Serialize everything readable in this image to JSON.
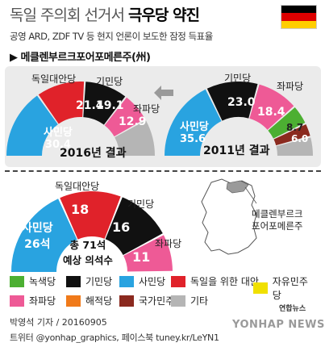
{
  "title": {
    "prefix": "독일 주의회 선거서 ",
    "highlight": "극우당 약진"
  },
  "subtitle": "공영 ARD, ZDF TV 등 현지 언론이 보도한 잠정 득표율",
  "region": "▶ 메클렌부르크포어포메른주(州)",
  "flag_colors": [
    "#000000",
    "#dd0000",
    "#ffce00"
  ],
  "colors": {
    "green": "#4caf32",
    "black": "#111111",
    "blue": "#29a3e0",
    "red": "#e0222a",
    "yellow": "#f0e000",
    "pink": "#ee5a96",
    "orange": "#f07a1a",
    "brown": "#8b2a1f",
    "gray": "#b5b5b5"
  },
  "chart_data": [
    {
      "type": "pie",
      "caption": "2016년 결과",
      "slices": [
        {
          "label": "사민당",
          "value": 30.4,
          "color": "#29a3e0"
        },
        {
          "label": "독일대안당",
          "value": 21.4,
          "color": "#e0222a"
        },
        {
          "label": "기민당",
          "value": 19.1,
          "color": "#111111"
        },
        {
          "label": "좌파당",
          "value": 12.9,
          "color": "#ee5a96"
        }
      ]
    },
    {
      "type": "pie",
      "caption": "2011년 결과",
      "slices": [
        {
          "label": "사민당",
          "value": 35.6,
          "color": "#29a3e0"
        },
        {
          "label": "기민당",
          "value": 23.0,
          "color": "#111111"
        },
        {
          "label": "좌파당",
          "value": 18.4,
          "color": "#ee5a96"
        },
        {
          "label": "",
          "value": 8.7,
          "color": "#4caf32"
        },
        {
          "label": "",
          "value": 6.0,
          "color": "#8b2a1f"
        }
      ]
    },
    {
      "type": "pie",
      "caption": "총 71석 예상 의석수",
      "total": 71,
      "slices": [
        {
          "label": "사민당",
          "value": 26,
          "unit": "석",
          "color": "#29a3e0"
        },
        {
          "label": "독일대안당",
          "value": 18,
          "color": "#e0222a"
        },
        {
          "label": "기민당",
          "value": 16,
          "color": "#111111"
        },
        {
          "label": "좌파당",
          "value": 11,
          "color": "#ee5a96"
        }
      ]
    }
  ],
  "seat_caption": {
    "line1": "총 71석",
    "line2": "예상 의석수"
  },
  "labels_2016": {
    "spd": "사민당",
    "spd_val": "30.4",
    "afd": "독일대안당",
    "afd_val": "21.4",
    "cdu": "기민당",
    "cdu_val": "19.1",
    "left": "좌파당",
    "left_val": "12.9",
    "caption": "2016년 결과"
  },
  "labels_2011": {
    "spd": "사민당",
    "spd_val": "35.6",
    "cdu": "기민당",
    "cdu_val": "23.0",
    "left": "좌파당",
    "left_val": "18.4",
    "green_val": "8.7",
    "npd_val": "6.0",
    "caption": "2011년 결과"
  },
  "labels_seats": {
    "spd": "사민당",
    "spd_val": "26석",
    "afd": "독일대안당",
    "afd_val": "18",
    "cdu": "기민당",
    "cdu_val": "16",
    "left": "좌파당",
    "left_val": "11"
  },
  "map_label": {
    "line1": "메클렌부르크",
    "line2": "포어포메른주"
  },
  "legend": [
    {
      "label": "녹색당",
      "color": "#4caf32"
    },
    {
      "label": "기민당",
      "color": "#111111"
    },
    {
      "label": "사민당",
      "color": "#29a3e0"
    },
    {
      "label": "독일을 위한 대안",
      "color": "#e0222a"
    },
    {
      "label": "자유민주당",
      "color": "#f0e000"
    },
    {
      "label": "좌파당",
      "color": "#ee5a96"
    },
    {
      "label": "해적당",
      "color": "#f07a1a"
    },
    {
      "label": "국가민주당",
      "color": "#8b2a1f"
    },
    {
      "label": "기타",
      "color": "#b5b5b5"
    }
  ],
  "byline": "박영석 기자 / 20160905",
  "twitter": "트위터 @yonhap_graphics, 페이스북 tuney.kr/LeYN1",
  "logo": "YONHAP NEWS",
  "logo_small": "연합뉴스"
}
